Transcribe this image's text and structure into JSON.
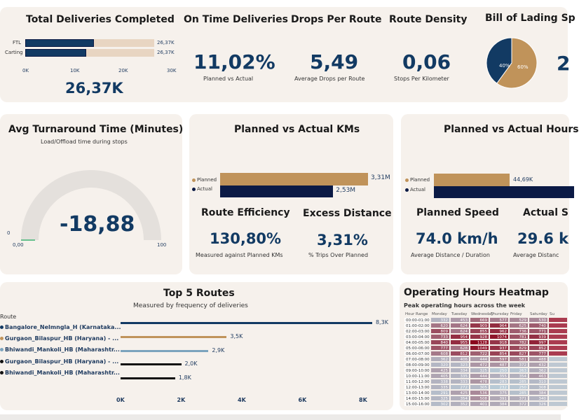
{
  "colors": {
    "navy": "#123a63",
    "dark_navy": "#0b1a45",
    "tan": "#c0935a",
    "light_tan": "#e8d5c2",
    "light_blue": "#7ba3bd",
    "black": "#111111",
    "card_bg": "#f6f1ec"
  },
  "total_deliveries": {
    "title": "Total Deliveries Completed",
    "categories": [
      "FTL",
      "Carting"
    ],
    "values": [
      14,
      12.5
    ],
    "totals": [
      26.37,
      26.37
    ],
    "value_labels": [
      "26,37K",
      "26,37K"
    ],
    "axis_ticks": [
      "0K",
      "10K",
      "20K",
      "30K"
    ],
    "axis_max": 30,
    "value": "26,37K"
  },
  "on_time": {
    "title": "On Time Deliveries",
    "value": "11,02%",
    "caption": "Planned vs Actual"
  },
  "drops": {
    "title": "Drops Per Route",
    "value": "5,49",
    "caption": "Average Drops per Route"
  },
  "density": {
    "title": "Route Density",
    "value": "0,06",
    "caption": "Stops Per Kilometer"
  },
  "bill_of_lading": {
    "title": "Bill of Lading Sp",
    "slices": [
      {
        "label": "40%",
        "value": 40,
        "color": "#123a63"
      },
      {
        "label": "60%",
        "value": 60,
        "color": "#c0935a"
      }
    ],
    "side_value": "2"
  },
  "turnaround": {
    "title": "Avg Turnaround Time (Minutes)",
    "subtitle": "Load/Offload time during stops",
    "value": "-18,88",
    "gauge_min": "0,00",
    "gauge_max": "100",
    "gauge_target": "0"
  },
  "kms": {
    "title": "Planned vs Actual KMs",
    "legend": [
      "Planned",
      "Actual"
    ],
    "values": [
      3.31,
      2.53
    ],
    "value_labels": [
      "3,31M",
      "2,53M"
    ],
    "efficiency": {
      "title": "Route Efficiency",
      "value": "130,80%",
      "caption": "Measured against Planned KMs"
    },
    "excess": {
      "title": "Excess Distance",
      "value": "3,31%",
      "caption": "% Trips Over Planned"
    }
  },
  "hours": {
    "title": "Planned vs Actual Hours",
    "legend": [
      "Planned",
      "Actual"
    ],
    "value_labels": [
      "44,69K"
    ],
    "planned_speed": {
      "title": "Planned Speed",
      "value": "74.0 km/h",
      "caption": "Average Distance / Duration"
    },
    "actual_speed": {
      "title": "Actual S",
      "value": "29.6 k",
      "caption": "Average Distanc"
    }
  },
  "top_routes": {
    "title": "Top 5 Routes",
    "subtitle": "Measured by frequency of deliveries",
    "legend_title": "Route",
    "routes": [
      {
        "name": "Bangalore_Nelmngla_H (Karnataka...",
        "value": 8.3,
        "label": "8,3K",
        "color": "#123a63"
      },
      {
        "name": "Gurgaon_Bilaspur_HB (Haryana) - ...",
        "value": 3.5,
        "label": "3,5K",
        "color": "#c0935a"
      },
      {
        "name": "Bhiwandi_Mankoli_HB (Maharashtr...",
        "value": 2.9,
        "label": "2,9K",
        "color": "#7ba3bd"
      },
      {
        "name": "Gurgaon_Bilaspur_HB (Haryana) - ...",
        "value": 2.0,
        "label": "2,0K",
        "color": "#111111"
      },
      {
        "name": "Bhiwandi_Mankoli_HB (Maharashtr...",
        "value": 1.8,
        "label": "1,8K",
        "color": "#111111"
      }
    ],
    "axis_ticks": [
      "0K",
      "2K",
      "4K",
      "6K",
      "8K"
    ],
    "axis_max": 8
  },
  "heatmap": {
    "title": "Operating Hours Heatmap",
    "subtitle": "Peak operating hours across the week",
    "row_header": "Hour Range",
    "days": [
      "Monday",
      "Tuesday",
      "Wednesday",
      "Thursday",
      "Friday",
      "Saturday",
      "Su"
    ],
    "rows": [
      {
        "hour": "00:00-01:00",
        "v": [
          332,
          453,
          669,
          577,
          529,
          530
        ]
      },
      {
        "hour": "01:00-02:00",
        "v": [
          620,
          624,
          909,
          964,
          625,
          740
        ]
      },
      {
        "hour": "02:00-03:00",
        "v": [
          809,
          624,
          855,
          962,
          736,
          771
        ]
      },
      {
        "hour": "03:00-04:00",
        "v": [
          733,
          954,
          928,
          1074,
          781,
          939
        ]
      },
      {
        "hour": "04:00-05:00",
        "v": [
          840,
          955,
          1128,
          918,
          782,
          997
        ]
      },
      {
        "hour": "05:00-06:00",
        "v": [
          777,
          628,
          1049,
          937,
          829,
          852
        ]
      },
      {
        "hour": "06:00-07:00",
        "v": [
          608,
          812,
          722,
          854,
          827,
          777
        ]
      },
      {
        "hour": "07:00-08:00",
        "v": [
          362,
          406,
          444,
          597,
          581,
          488
        ]
      },
      {
        "hour": "08:00-09:00",
        "v": [
          320,
          323,
          472,
          487,
          372,
          432
        ]
      },
      {
        "hour": "09:00-10:00",
        "v": [
          425,
          334,
          325,
          250,
          263,
          362
        ]
      },
      {
        "hour": "10:00-11:00",
        "v": [
          405,
          335,
          444,
          355,
          354,
          463
        ]
      },
      {
        "hour": "11:00-12:00",
        "v": [
          338,
          333,
          478,
          283,
          285,
          310
        ]
      },
      {
        "hour": "12:00-13:00",
        "v": [
          335,
          272,
          305,
          232,
          250,
          308
        ]
      },
      {
        "hour": "13:00-14:00",
        "v": [
          291,
          425,
          536,
          375,
          285,
          384
        ]
      },
      {
        "hour": "14:00-15:00",
        "v": [
          325,
          354,
          508,
          391,
          371,
          340
        ]
      },
      {
        "hour": "15:00-16:00",
        "v": [
          302,
          352,
          401,
          384,
          372,
          326
        ]
      }
    ]
  }
}
